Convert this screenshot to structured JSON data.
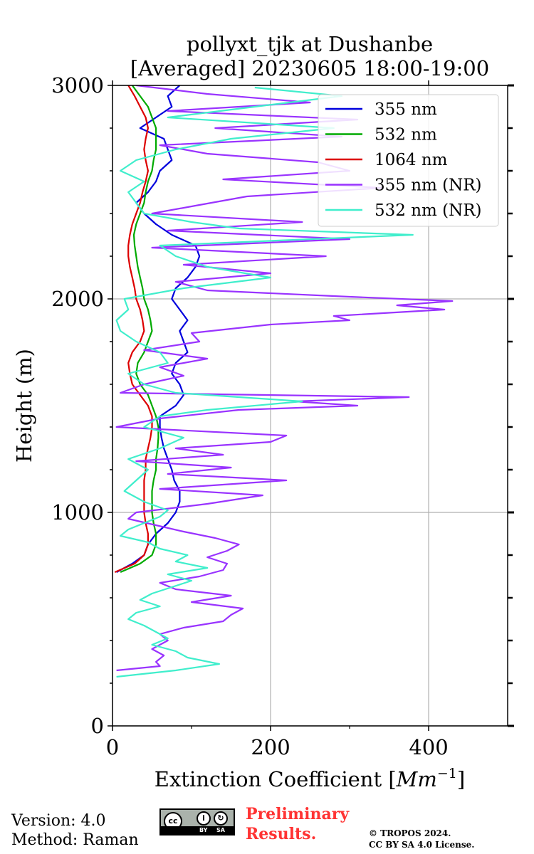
{
  "chart_data": {
    "type": "line",
    "title_line1": "pollyxt_tjk at Dushanbe",
    "title_line2": "[Averaged] 20230605 18:00-19:00",
    "xlabel_prefix": "Extinction Coefficient [",
    "xlabel_unit": "Mm",
    "xlabel_exp": "−1",
    "xlabel_suffix": "]",
    "ylabel": "Height (m)",
    "xlim": [
      0,
      500
    ],
    "ylim": [
      0,
      3000
    ],
    "xticks": [
      0,
      200,
      400
    ],
    "yticks": [
      0,
      1000,
      2000,
      3000
    ],
    "grid": true,
    "legend_position": "upper-right",
    "series": [
      {
        "name": "355 nm",
        "color": "#0000dd",
        "y": [
          720,
          760,
          800,
          850,
          900,
          950,
          1000,
          1050,
          1100,
          1150,
          1200,
          1250,
          1300,
          1350,
          1400,
          1450,
          1500,
          1550,
          1600,
          1650,
          1700,
          1750,
          1800,
          1850,
          1900,
          1950,
          2000,
          2050,
          2100,
          2150,
          2200,
          2250,
          2300,
          2350,
          2400,
          2450,
          2500,
          2550,
          2600,
          2650,
          2700,
          2750,
          2800,
          2850,
          2900,
          2950,
          3000
        ],
        "x": [
          5,
          25,
          40,
          45,
          55,
          70,
          80,
          85,
          85,
          78,
          75,
          70,
          65,
          62,
          60,
          60,
          80,
          90,
          85,
          75,
          80,
          95,
          90,
          85,
          95,
          85,
          75,
          80,
          95,
          105,
          110,
          105,
          75,
          55,
          40,
          30,
          45,
          55,
          60,
          75,
          70,
          65,
          35,
          55,
          75,
          70,
          85
        ]
      },
      {
        "name": "532 nm",
        "color": "#00aa00",
        "y": [
          720,
          760,
          800,
          850,
          900,
          950,
          1000,
          1050,
          1100,
          1150,
          1200,
          1250,
          1300,
          1350,
          1400,
          1450,
          1500,
          1550,
          1600,
          1650,
          1700,
          1750,
          1800,
          1850,
          1900,
          1950,
          2000,
          2050,
          2100,
          2150,
          2200,
          2250,
          2300,
          2350,
          2400,
          2450,
          2500,
          2550,
          2600,
          2650,
          2700,
          2750,
          2800,
          2850,
          2900,
          2950,
          3000
        ],
        "x": [
          10,
          35,
          50,
          55,
          55,
          52,
          50,
          50,
          50,
          52,
          55,
          55,
          57,
          58,
          58,
          55,
          50,
          45,
          35,
          30,
          32,
          40,
          45,
          50,
          48,
          45,
          40,
          38,
          35,
          32,
          30,
          28,
          27,
          30,
          35,
          40,
          42,
          45,
          50,
          52,
          55,
          55,
          55,
          50,
          45,
          35,
          25
        ]
      },
      {
        "name": "1064 nm",
        "color": "#dd0000",
        "y": [
          720,
          760,
          800,
          850,
          900,
          950,
          1000,
          1050,
          1100,
          1150,
          1200,
          1250,
          1300,
          1350,
          1400,
          1450,
          1500,
          1550,
          1600,
          1650,
          1700,
          1750,
          1800,
          1850,
          1900,
          1950,
          2000,
          2050,
          2100,
          2150,
          2200,
          2250,
          2300,
          2350,
          2400,
          2450,
          2500,
          2550,
          2600,
          2650,
          2700,
          2750,
          2800,
          2850,
          2900,
          2950,
          3000
        ],
        "x": [
          3,
          28,
          40,
          45,
          45,
          42,
          40,
          40,
          40,
          40,
          42,
          42,
          45,
          48,
          50,
          50,
          45,
          35,
          25,
          22,
          20,
          25,
          35,
          40,
          38,
          35,
          30,
          28,
          25,
          22,
          20,
          20,
          22,
          25,
          30,
          35,
          38,
          42,
          45,
          42,
          40,
          42,
          45,
          42,
          35,
          28,
          20
        ]
      },
      {
        "name": "355 nm (NR)",
        "color": "#9933ff",
        "y": [
          260,
          280,
          300,
          330,
          360,
          400,
          430,
          460,
          490,
          520,
          550,
          580,
          610,
          640,
          670,
          700,
          730,
          760,
          790,
          820,
          850,
          880,
          910,
          940,
          970,
          1000,
          1040,
          1080,
          1110,
          1150,
          1180,
          1210,
          1240,
          1270,
          1300,
          1330,
          1360,
          1400,
          1440,
          1480,
          1500,
          1520,
          1540,
          1560,
          1600,
          1640,
          1680,
          1720,
          1760,
          1800,
          1840,
          1880,
          1900,
          1920,
          1950,
          1970,
          1990,
          2010,
          2040,
          2080,
          2120,
          2160,
          2200,
          2240,
          2280,
          2320,
          2360,
          2400,
          2440,
          2480,
          2520,
          2560,
          2600,
          2640,
          2680,
          2720,
          2760,
          2800,
          2840,
          2880,
          2920,
          2960,
          3000
        ],
        "x": [
          5,
          60,
          55,
          65,
          50,
          70,
          60,
          90,
          140,
          150,
          165,
          100,
          150,
          80,
          60,
          110,
          140,
          145,
          120,
          145,
          160,
          130,
          90,
          55,
          20,
          30,
          120,
          190,
          60,
          220,
          70,
          150,
          30,
          140,
          80,
          200,
          220,
          5,
          60,
          160,
          310,
          230,
          375,
          10,
          40,
          90,
          60,
          120,
          40,
          110,
          100,
          200,
          300,
          280,
          420,
          360,
          430,
          300,
          120,
          80,
          200,
          90,
          270,
          50,
          300,
          70,
          240,
          50,
          110,
          170,
          340,
          140,
          300,
          260,
          120,
          60,
          290,
          130,
          310,
          70,
          250,
          120,
          30
        ]
      },
      {
        "name": "532 nm (NR)",
        "color": "#40eecc",
        "y": [
          230,
          260,
          290,
          320,
          350,
          380,
          410,
          440,
          470,
          500,
          530,
          560,
          590,
          620,
          650,
          680,
          710,
          740,
          770,
          800,
          830,
          860,
          890,
          920,
          950,
          980,
          1010,
          1050,
          1100,
          1150,
          1200,
          1250,
          1300,
          1350,
          1400,
          1450,
          1480,
          1520,
          1560,
          1600,
          1650,
          1700,
          1750,
          1800,
          1850,
          1900,
          1950,
          2000,
          2050,
          2100,
          2150,
          2200,
          2250,
          2300,
          2330,
          2360,
          2400,
          2450,
          2500,
          2550,
          2600,
          2650,
          2700,
          2750,
          2800,
          2850,
          2900,
          2950,
          2990
        ],
        "x": [
          5,
          80,
          135,
          95,
          80,
          50,
          70,
          55,
          40,
          20,
          30,
          60,
          35,
          50,
          75,
          100,
          70,
          120,
          80,
          95,
          60,
          45,
          10,
          20,
          40,
          60,
          70,
          40,
          15,
          30,
          45,
          20,
          60,
          90,
          40,
          60,
          120,
          240,
          80,
          40,
          20,
          70,
          60,
          30,
          10,
          5,
          20,
          15,
          90,
          200,
          120,
          80,
          60,
          380,
          160,
          100,
          40,
          30,
          20,
          40,
          10,
          30,
          80,
          150,
          280,
          70,
          180,
          290,
          180
        ]
      }
    ]
  },
  "footer": {
    "version": "Version: 4.0",
    "method": "Method: Raman",
    "cc_text": "cc",
    "by_text": "BY",
    "sa_text": "SA",
    "preliminary_line1": "Preliminary",
    "preliminary_line2": "Results.",
    "copyright_line1": "© TROPOS 2024.",
    "copyright_line2": "CC BY SA 4.0 License."
  }
}
